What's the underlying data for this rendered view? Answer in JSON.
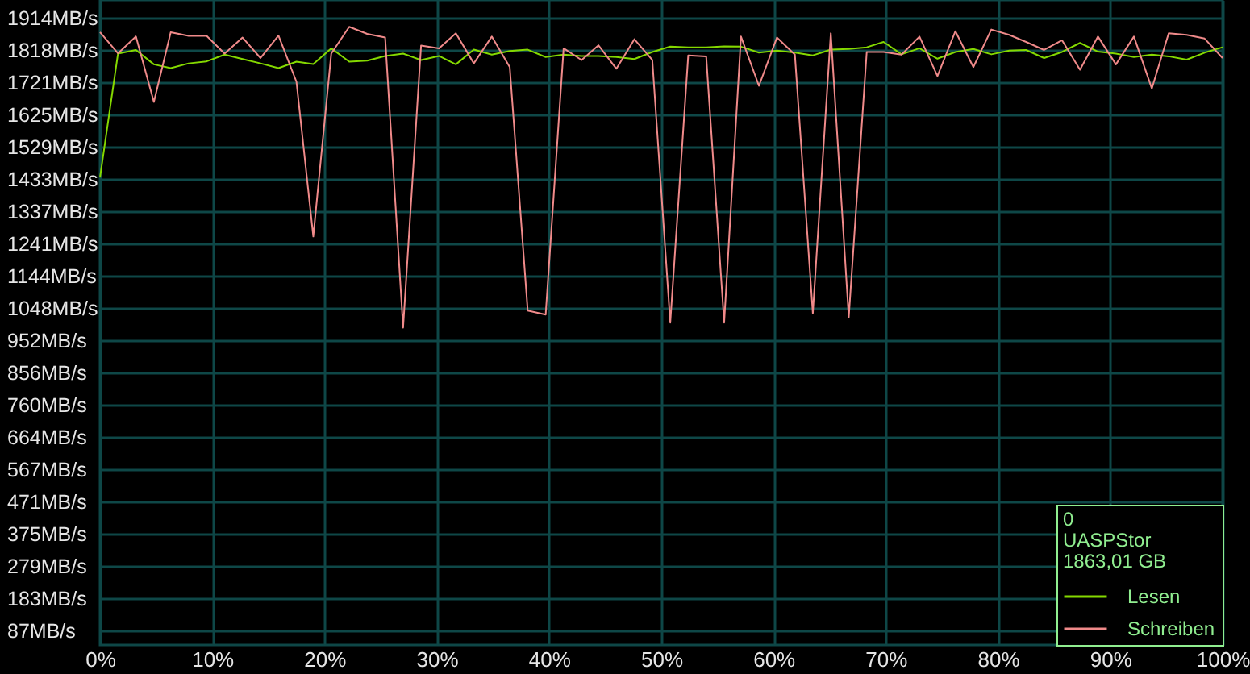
{
  "chart_data": {
    "type": "line",
    "x": [
      0,
      1.6,
      3.2,
      4.8,
      6.3,
      7.9,
      9.5,
      11.1,
      12.7,
      14.3,
      15.9,
      17.5,
      19.0,
      20.6,
      22.2,
      23.8,
      25.4,
      27.0,
      28.6,
      30.2,
      31.7,
      33.3,
      34.9,
      36.5,
      38.1,
      39.7,
      41.3,
      42.9,
      44.4,
      46.0,
      47.6,
      49.2,
      50.8,
      52.4,
      54.0,
      55.6,
      57.1,
      58.7,
      60.3,
      61.9,
      63.5,
      65.1,
      66.7,
      68.3,
      69.8,
      71.4,
      73.0,
      74.6,
      76.2,
      77.8,
      79.4,
      81.0,
      82.5,
      84.1,
      85.7,
      87.3,
      88.9,
      90.5,
      92.1,
      93.7,
      95.2,
      96.8,
      98.4,
      100
    ],
    "series": [
      {
        "name": "Lesen",
        "color": "#84d800",
        "values": [
          1438,
          1807,
          1818,
          1775,
          1764,
          1778,
          1784,
          1804,
          1791,
          1778,
          1764,
          1783,
          1776,
          1823,
          1783,
          1786,
          1800,
          1807,
          1788,
          1800,
          1775,
          1819,
          1804,
          1815,
          1819,
          1797,
          1804,
          1800,
          1800,
          1797,
          1791,
          1812,
          1828,
          1826,
          1826,
          1829,
          1828,
          1810,
          1816,
          1810,
          1802,
          1819,
          1821,
          1826,
          1842,
          1805,
          1823,
          1792,
          1812,
          1821,
          1805,
          1816,
          1818,
          1794,
          1812,
          1839,
          1813,
          1807,
          1797,
          1804,
          1799,
          1789,
          1810,
          1826
        ]
      },
      {
        "name": "Schreiben",
        "color": "#f08a8a",
        "values": [
          1871,
          1808,
          1858,
          1663,
          1871,
          1860,
          1860,
          1807,
          1855,
          1794,
          1861,
          1723,
          1262,
          1807,
          1887,
          1866,
          1855,
          990,
          1831,
          1823,
          1868,
          1778,
          1858,
          1767,
          1041,
          1029,
          1823,
          1788,
          1832,
          1762,
          1850,
          1788,
          1005,
          1802,
          1799,
          1005,
          1858,
          1711,
          1855,
          1804,
          1033,
          1868,
          1021,
          1812,
          1812,
          1804,
          1858,
          1740,
          1874,
          1767,
          1879,
          1863,
          1842,
          1818,
          1847,
          1759,
          1858,
          1775,
          1858,
          1703,
          1868,
          1863,
          1852,
          1794
        ]
      }
    ],
    "xlim": [
      0,
      100
    ],
    "xticks": [
      {
        "value": 0,
        "label": "0%"
      },
      {
        "value": 10,
        "label": "10%"
      },
      {
        "value": 20,
        "label": "20%"
      },
      {
        "value": 30,
        "label": "30%"
      },
      {
        "value": 40,
        "label": "40%"
      },
      {
        "value": 50,
        "label": "50%"
      },
      {
        "value": 60,
        "label": "60%"
      },
      {
        "value": 70,
        "label": "70%"
      },
      {
        "value": 80,
        "label": "80%"
      },
      {
        "value": 90,
        "label": "90%"
      },
      {
        "value": 100,
        "label": "100%"
      }
    ],
    "ylim": [
      44,
      1967
    ],
    "yticks": [
      {
        "value": 87,
        "label": "87MB/s"
      },
      {
        "value": 183,
        "label": "183MB/s"
      },
      {
        "value": 279,
        "label": "279MB/s"
      },
      {
        "value": 375,
        "label": "375MB/s"
      },
      {
        "value": 471,
        "label": "471MB/s"
      },
      {
        "value": 567,
        "label": "567MB/s"
      },
      {
        "value": 664,
        "label": "664MB/s"
      },
      {
        "value": 760,
        "label": "760MB/s"
      },
      {
        "value": 856,
        "label": "856MB/s"
      },
      {
        "value": 952,
        "label": "952MB/s"
      },
      {
        "value": 1048,
        "label": "1048MB/s"
      },
      {
        "value": 1144,
        "label": "1144MB/s"
      },
      {
        "value": 1241,
        "label": "1241MB/s"
      },
      {
        "value": 1337,
        "label": "1337MB/s"
      },
      {
        "value": 1433,
        "label": "1433MB/s"
      },
      {
        "value": 1529,
        "label": "1529MB/s"
      },
      {
        "value": 1625,
        "label": "1625MB/s"
      },
      {
        "value": 1721,
        "label": "1721MB/s"
      },
      {
        "value": 1818,
        "label": "1818MB/s"
      },
      {
        "value": 1914,
        "label": "1914MB/s"
      }
    ],
    "annotations": [
      "0",
      "UASPStor",
      "1863,01 GB"
    ],
    "grid": true,
    "legend": "bottom right"
  }
}
